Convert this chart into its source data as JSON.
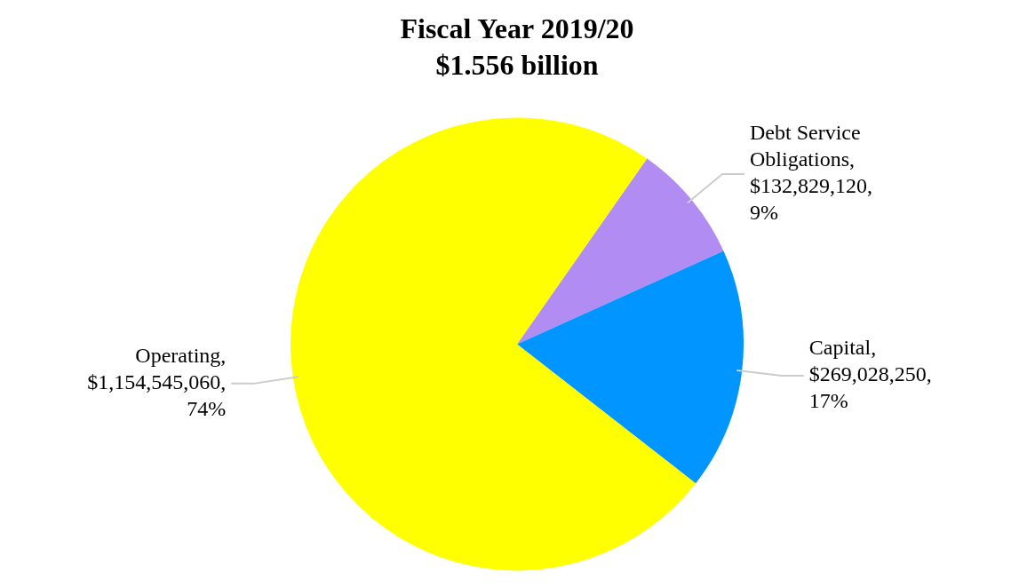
{
  "chart_data": {
    "type": "pie",
    "title": "Fiscal Year 2019/20",
    "subtitle": "$1.556 billion",
    "categories": [
      "Debt Service Obligations",
      "Capital",
      "Operating"
    ],
    "values": [
      132829120,
      269028250,
      1154545060
    ],
    "value_labels": [
      ", $132,829,120, 9%",
      ", $269,028,250, 17%",
      ", $1,154,545,060, 74%"
    ],
    "colors": [
      "#b18cf3",
      "#0095ff",
      "#ffff00"
    ],
    "legend": false
  }
}
